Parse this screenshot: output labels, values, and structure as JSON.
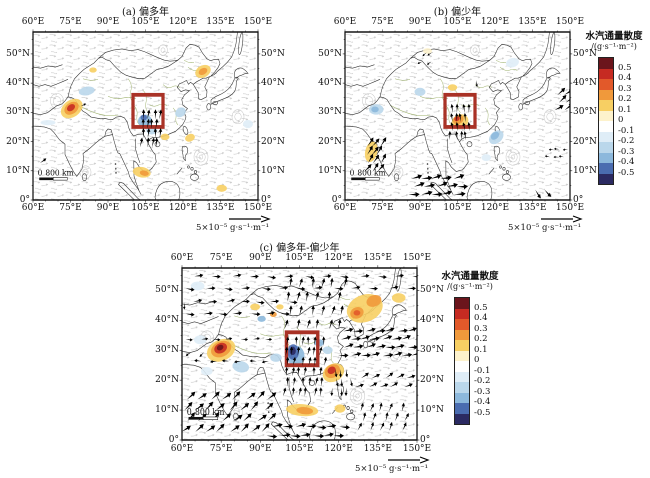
{
  "panels": [
    {
      "key": "a",
      "title": "(a) 偏多年"
    },
    {
      "key": "b",
      "title": "(b) 偏少年"
    },
    {
      "key": "c",
      "title": "(c) 偏多年-偏少年"
    }
  ],
  "axes": {
    "lon_labels": [
      "60°E",
      "75°E",
      "90°E",
      "105°E",
      "120°E",
      "135°E",
      "150°E"
    ],
    "lat_labels": [
      "50°N",
      "40°N",
      "30°N",
      "20°N",
      "10°N",
      "0°"
    ],
    "lat_degrees": [
      50,
      40,
      30,
      20,
      10,
      0
    ],
    "lat_top_degree": 57.5
  },
  "colorbar": {
    "title": "水汽通量散度",
    "unit": "/(g·s⁻¹·m⁻²)",
    "tick_labels": [
      "0.5",
      "0.4",
      "0.3",
      "0.2",
      "0.1",
      "0",
      "-0.1",
      "-0.2",
      "-0.3",
      "-0.4",
      "-0.5"
    ],
    "colors": [
      "#6b151c",
      "#c62b22",
      "#e2592a",
      "#f0993b",
      "#f7cf63",
      "#fdf2cc",
      "#ffffff",
      "#dfedf7",
      "#bad7eb",
      "#8cb8dc",
      "#4a6cb0",
      "#2b2a62"
    ]
  },
  "scale_bar": {
    "zero": "0",
    "label": "800 km"
  },
  "vector_scale_label": "5×10⁻⁵ g·s⁻¹·m⁻¹",
  "highlight_box": {
    "lon_min": 100,
    "lat_min": 25,
    "lon_max": 112,
    "lat_max": 36,
    "color": "#a93226"
  },
  "map_extent": {
    "lon_min": 60,
    "lon_max": 150,
    "lat_min": 0,
    "lat_max": 57.5
  },
  "shading": {
    "a": [
      {
        "lon": 75.5,
        "lat": 31.3,
        "rx": 4.6,
        "ry": 3.0,
        "rot": -25,
        "c": "#f7cf63"
      },
      {
        "lon": 75.4,
        "lat": 31.4,
        "rx": 3.0,
        "ry": 2.0,
        "rot": -25,
        "c": "#f0993b"
      },
      {
        "lon": 75.2,
        "lat": 31.6,
        "rx": 1.7,
        "ry": 1.1,
        "rot": -25,
        "c": "#c62b22"
      },
      {
        "lon": 81.5,
        "lat": 37.3,
        "rx": 3.2,
        "ry": 1.5,
        "rot": -8,
        "c": "#bad7eb"
      },
      {
        "lon": 84,
        "lat": 44.5,
        "rx": 1.5,
        "ry": 0.9,
        "rot": 0,
        "c": "#f7cf63"
      },
      {
        "lon": 128,
        "lat": 44,
        "rx": 3.2,
        "ry": 2.1,
        "rot": -20,
        "c": "#f7cf63"
      },
      {
        "lon": 128,
        "lat": 44,
        "rx": 1.8,
        "ry": 1.1,
        "rot": -20,
        "c": "#f0993b"
      },
      {
        "lon": 104.8,
        "lat": 27,
        "rx": 2.8,
        "ry": 2.2,
        "rot": 0,
        "c": "#8cb8dc"
      },
      {
        "lon": 104.3,
        "lat": 28.2,
        "rx": 1.3,
        "ry": 1.0,
        "rot": 0,
        "c": "#4a6cb0"
      },
      {
        "lon": 107.5,
        "lat": 24,
        "rx": 2.2,
        "ry": 1.6,
        "rot": 0,
        "c": "#bad7eb"
      },
      {
        "lon": 112.8,
        "lat": 21.6,
        "rx": 1.8,
        "ry": 1.1,
        "rot": 0,
        "c": "#f7cf63"
      },
      {
        "lon": 122.8,
        "lat": 21.3,
        "rx": 2.0,
        "ry": 1.3,
        "rot": -15,
        "c": "#f7cf63"
      },
      {
        "lon": 119,
        "lat": 30,
        "rx": 2.2,
        "ry": 1.6,
        "rot": -20,
        "c": "#bad7eb"
      },
      {
        "lon": 103.5,
        "lat": 9.5,
        "rx": 3.6,
        "ry": 1.8,
        "rot": 8,
        "c": "#f7cf63"
      },
      {
        "lon": 104.5,
        "lat": 9.2,
        "rx": 1.8,
        "ry": 0.9,
        "rot": 8,
        "c": "#f0993b"
      },
      {
        "lon": 135.5,
        "lat": 4,
        "rx": 2.1,
        "ry": 1.2,
        "rot": 0,
        "c": "#f7cf63"
      },
      {
        "lon": 66,
        "lat": 26.5,
        "rx": 3.0,
        "ry": 0.9,
        "rot": 0,
        "c": "#dfedf7"
      },
      {
        "lon": 146,
        "lat": 26,
        "rx": 2.0,
        "ry": 1.4,
        "rot": 0,
        "c": "#dfedf7"
      }
    ],
    "b": [
      {
        "lon": 106,
        "lat": 26.8,
        "rx": 3.4,
        "ry": 2.5,
        "rot": -15,
        "c": "#f7cf63"
      },
      {
        "lon": 105.3,
        "lat": 27.5,
        "rx": 2.2,
        "ry": 1.5,
        "rot": -15,
        "c": "#f0993b"
      },
      {
        "lon": 104.8,
        "lat": 27.8,
        "rx": 1.1,
        "ry": 0.8,
        "rot": -15,
        "c": "#c62b22"
      },
      {
        "lon": 72.5,
        "lat": 31,
        "rx": 2.9,
        "ry": 1.8,
        "rot": 0,
        "c": "#bad7eb"
      },
      {
        "lon": 72,
        "lat": 31,
        "rx": 1.5,
        "ry": 1.0,
        "rot": 0,
        "c": "#8cb8dc"
      },
      {
        "lon": 90,
        "lat": 37,
        "rx": 2.2,
        "ry": 1.4,
        "rot": 0,
        "c": "#bad7eb"
      },
      {
        "lon": 103,
        "lat": 38.5,
        "rx": 1.9,
        "ry": 1.1,
        "rot": 0,
        "c": "#f7cf63"
      },
      {
        "lon": 70.5,
        "lat": 16.5,
        "rx": 2.4,
        "ry": 3.6,
        "rot": 18,
        "c": "#f7cf63"
      },
      {
        "lon": 120.5,
        "lat": 21.5,
        "rx": 3.1,
        "ry": 2.1,
        "rot": -30,
        "c": "#bad7eb"
      },
      {
        "lon": 120,
        "lat": 22,
        "rx": 1.8,
        "ry": 1.2,
        "rot": -30,
        "c": "#8cb8dc"
      },
      {
        "lon": 116.5,
        "lat": 14.5,
        "rx": 1.9,
        "ry": 1.2,
        "rot": 0,
        "c": "#dfedf7"
      },
      {
        "lon": 127,
        "lat": 47,
        "rx": 2.6,
        "ry": 1.6,
        "rot": -10,
        "c": "#dfedf7"
      },
      {
        "lon": 93,
        "lat": 51,
        "rx": 1.8,
        "ry": 1.0,
        "rot": 0,
        "c": "#fdf2cc"
      }
    ],
    "c": [
      {
        "lon": 75,
        "lat": 30,
        "rx": 5.6,
        "ry": 3.6,
        "rot": -18,
        "c": "#f7cf63"
      },
      {
        "lon": 75,
        "lat": 30.4,
        "rx": 4.0,
        "ry": 2.6,
        "rot": -18,
        "c": "#f0993b"
      },
      {
        "lon": 74.8,
        "lat": 30.7,
        "rx": 2.5,
        "ry": 1.7,
        "rot": -18,
        "c": "#c62b22"
      },
      {
        "lon": 74.6,
        "lat": 30.9,
        "rx": 1.3,
        "ry": 0.9,
        "rot": -18,
        "c": "#6b151c"
      },
      {
        "lon": 82.5,
        "lat": 24.5,
        "rx": 3.2,
        "ry": 1.9,
        "rot": 8,
        "c": "#bad7eb"
      },
      {
        "lon": 69.5,
        "lat": 23,
        "rx": 2.2,
        "ry": 1.4,
        "rot": 0,
        "c": "#dfedf7"
      },
      {
        "lon": 67,
        "lat": 33.5,
        "rx": 2.4,
        "ry": 1.5,
        "rot": 0,
        "c": "#dfedf7"
      },
      {
        "lon": 96,
        "lat": 27.5,
        "rx": 2.2,
        "ry": 1.4,
        "rot": 0,
        "c": "#bad7eb"
      },
      {
        "lon": 103.5,
        "lat": 28.2,
        "rx": 3.4,
        "ry": 3.4,
        "rot": 0,
        "c": "#8cb8dc"
      },
      {
        "lon": 102.6,
        "lat": 29.4,
        "rx": 2.2,
        "ry": 2.6,
        "rot": 0,
        "c": "#4a6cb0"
      },
      {
        "lon": 102.4,
        "lat": 29.8,
        "rx": 1.2,
        "ry": 1.4,
        "rot": 0,
        "c": "#2b2a62"
      },
      {
        "lon": 112.5,
        "lat": 32.5,
        "rx": 1.9,
        "ry": 1.2,
        "rot": 0,
        "c": "#8cb8dc"
      },
      {
        "lon": 115.8,
        "lat": 30,
        "rx": 1.9,
        "ry": 1.3,
        "rot": 0,
        "c": "#bad7eb"
      },
      {
        "lon": 118,
        "lat": 22.5,
        "rx": 4.2,
        "ry": 3.0,
        "rot": -20,
        "c": "#f7cf63"
      },
      {
        "lon": 117.6,
        "lat": 23,
        "rx": 3.0,
        "ry": 2.2,
        "rot": -20,
        "c": "#f0993b"
      },
      {
        "lon": 117.3,
        "lat": 23.3,
        "rx": 1.6,
        "ry": 1.2,
        "rot": -20,
        "c": "#c62b22"
      },
      {
        "lon": 130,
        "lat": 44,
        "rx": 7.0,
        "ry": 4.6,
        "rot": -15,
        "c": "#f7cf63"
      },
      {
        "lon": 127,
        "lat": 42.5,
        "rx": 2.6,
        "ry": 1.9,
        "rot": -15,
        "c": "#f0993b"
      },
      {
        "lon": 127,
        "lat": 42.5,
        "rx": 1.3,
        "ry": 0.9,
        "rot": 0,
        "c": "#e2592a"
      },
      {
        "lon": 133.5,
        "lat": 46.5,
        "rx": 2.9,
        "ry": 1.9,
        "rot": -15,
        "c": "#f0993b"
      },
      {
        "lon": 66,
        "lat": 51.5,
        "rx": 2.6,
        "ry": 1.5,
        "rot": 0,
        "c": "#dfedf7"
      },
      {
        "lon": 88,
        "lat": 44.5,
        "rx": 1.9,
        "ry": 1.1,
        "rot": 0,
        "c": "#f7cf63"
      },
      {
        "lon": 95,
        "lat": 42,
        "rx": 1.3,
        "ry": 0.9,
        "rot": 0,
        "c": "#f0993b"
      },
      {
        "lon": 90.5,
        "lat": 40.5,
        "rx": 1.6,
        "ry": 1.0,
        "rot": 0,
        "c": "#8cb8dc"
      },
      {
        "lon": 106,
        "lat": 10,
        "rx": 6.2,
        "ry": 2.0,
        "rot": 4,
        "c": "#f7cf63"
      },
      {
        "lon": 107,
        "lat": 9.8,
        "rx": 3.2,
        "ry": 1.2,
        "rot": 4,
        "c": "#f0993b"
      },
      {
        "lon": 120.5,
        "lat": 10.5,
        "rx": 2.1,
        "ry": 1.4,
        "rot": 0,
        "c": "#f7cf63"
      },
      {
        "lon": 143,
        "lat": 47.5,
        "rx": 2.6,
        "ry": 1.6,
        "rot": 0,
        "c": "#f7cf63"
      },
      {
        "lon": 97.5,
        "lat": 44.5,
        "rx": 1.4,
        "ry": 0.9,
        "rot": 0,
        "c": "#f7cf63"
      }
    ]
  },
  "vectors": {
    "a": [
      {
        "lon": 103.6,
        "lat": 18.0,
        "dlon": 2.1,
        "dlat": 3.2,
        "cols": 4,
        "rows": 4,
        "ang": 88,
        "sc": 1.15
      },
      {
        "lon": 63.5,
        "lat": 12.5,
        "dlon": 0,
        "dlat": 0,
        "cols": 1,
        "rows": 1,
        "ang": 45,
        "sc": 1.0
      },
      {
        "lon": 79.8,
        "lat": 32.0,
        "dlon": 0,
        "dlat": 0,
        "cols": 1,
        "rows": 1,
        "ang": 35,
        "sc": 0.75
      }
    ],
    "b": [
      {
        "lon": 102.6,
        "lat": 20.5,
        "dlon": 2.1,
        "dlat": 3.1,
        "cols": 4,
        "rows": 4,
        "ang": 100,
        "sc": 1.05
      },
      {
        "lon": 68.5,
        "lat": 9.5,
        "dlon": 2.3,
        "dlat": 2.9,
        "cols": 3,
        "rows": 4,
        "ang": 55,
        "sc": 1.3
      },
      {
        "lon": 86.0,
        "lat": 1.6,
        "dlon": 4.3,
        "dlat": 2.7,
        "cols": 5,
        "rows": 3,
        "ang": 14,
        "sc": 1.5
      },
      {
        "lon": 144.5,
        "lat": 30.5,
        "dlon": 3.1,
        "dlat": 2.6,
        "cols": 2,
        "rows": 3,
        "ang": 38,
        "sc": 1.35
      },
      {
        "lon": 142.6,
        "lat": 14.8,
        "dlon": 2.5,
        "dlat": 2.7,
        "cols": 3,
        "rows": 2,
        "ang": 182,
        "sc": 0.7
      },
      {
        "lon": 136.5,
        "lat": 3.4,
        "dlon": 2.7,
        "dlat": -1.9,
        "cols": 2,
        "rows": 1,
        "ang": -40,
        "sc": 1.25
      },
      {
        "lon": 91.5,
        "lat": 47.5,
        "dlon": 2.6,
        "dlat": 3.1,
        "cols": 2,
        "rows": 2,
        "ang": 215,
        "sc": 0.7
      },
      {
        "lon": 113.0,
        "lat": 41.0,
        "dlon": 0,
        "dlat": 0,
        "cols": 1,
        "rows": 1,
        "ang": -70,
        "sc": 0.8
      }
    ],
    "c": [
      {
        "lon": 62,
        "lat": 50.5,
        "dlon": 7,
        "dlat": 4,
        "cols": 13,
        "rows": 2,
        "ang": 4,
        "sc": 1.15
      },
      {
        "lon": 62,
        "lat": 42,
        "dlon": 6,
        "dlat": 4,
        "cols": 7,
        "rows": 2,
        "ang": 7,
        "sc": 1.15
      },
      {
        "lon": 100,
        "lat": 37,
        "dlon": 4,
        "dlat": 4.6,
        "cols": 6,
        "rows": 4,
        "ang": 80,
        "sc": 1.15
      },
      {
        "lon": 99.5,
        "lat": 14.5,
        "dlon": 2.7,
        "dlat": 3.4,
        "cols": 6,
        "rows": 6,
        "ang": 86,
        "sc": 1.05
      },
      {
        "lon": 62,
        "lat": 33.5,
        "dlon": 5,
        "dlat": 0,
        "cols": 7,
        "rows": 1,
        "ang": 8,
        "sc": 0.9
      },
      {
        "lon": 68,
        "lat": 26.5,
        "dlon": 5,
        "dlat": 0,
        "cols": 6,
        "rows": 1,
        "ang": 188,
        "sc": 0.9
      },
      {
        "lon": 64,
        "lat": 29.5,
        "dlon": 4,
        "dlat": 0,
        "cols": 2,
        "rows": 1,
        "ang": 225,
        "sc": 0.8
      },
      {
        "lon": 120.5,
        "lat": 28,
        "dlon": 4,
        "dlat": 2.7,
        "cols": 8,
        "rows": 4,
        "ang": 14,
        "sc": 1.3
      },
      {
        "lon": 127,
        "lat": 17.5,
        "dlon": 4.4,
        "dlat": 3,
        "cols": 6,
        "rows": 2,
        "ang": 28,
        "sc": 1.15
      },
      {
        "lon": 118,
        "lat": 17.5,
        "dlon": 2.4,
        "dlat": 3.1,
        "cols": 3,
        "rows": 3,
        "ang": -82,
        "sc": 0.95
      },
      {
        "lon": 60.5,
        "lat": 2.5,
        "dlon": 4.4,
        "dlat": 3.6,
        "cols": 8,
        "rows": 4,
        "ang": 42,
        "sc": 1.4
      },
      {
        "lon": 93,
        "lat": 1.2,
        "dlon": 4.2,
        "dlat": 3,
        "cols": 7,
        "rows": 2,
        "ang": 8,
        "sc": 1.35
      },
      {
        "lon": 128,
        "lat": 3,
        "dlon": 4,
        "dlat": 3.2,
        "cols": 5,
        "rows": 3,
        "ang": 72,
        "sc": 1.05
      },
      {
        "lon": 60.8,
        "lat": 38,
        "dlon": 0,
        "dlat": 8,
        "cols": 1,
        "rows": 2,
        "ang": -95,
        "sc": 0.8
      }
    ]
  }
}
